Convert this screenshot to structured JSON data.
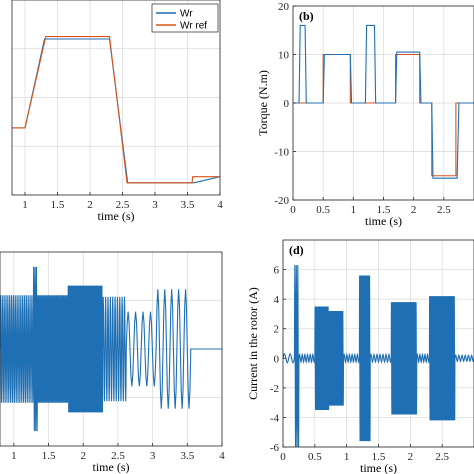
{
  "colors": {
    "series_a": "#1f6fb4",
    "series_b": "#d95319",
    "grid": "#d9d9d9",
    "axis": "#262626"
  },
  "chart_data": [
    {
      "id": "a",
      "type": "line",
      "panel_label": "",
      "xlabel": "time (s)",
      "ylabel": "",
      "xlim": [
        0.8,
        4.0
      ],
      "ylim": [
        -10,
        150
      ],
      "xticks": [
        1,
        1.5,
        2,
        2.5,
        3,
        3.5,
        4
      ],
      "xtick_labels": [
        "1",
        "1.5",
        "2",
        "2.5",
        "3",
        "3.5",
        "4"
      ],
      "yticks": [],
      "grid": true,
      "legend": {
        "placement": "top-right",
        "entries": [
          "Wr",
          "Wr ref"
        ]
      },
      "series": [
        {
          "name": "Wr",
          "color_key": "series_a",
          "x": [
            0.8,
            1.0,
            1.3,
            1.35,
            2.3,
            2.58,
            3.6,
            4.0
          ],
          "y": [
            45,
            45,
            118,
            118,
            118,
            0,
            0,
            5
          ]
        },
        {
          "name": "Wr ref",
          "color_key": "series_b",
          "x": [
            0.8,
            1.0,
            1.32,
            2.3,
            2.57,
            3.57,
            3.58,
            4.0
          ],
          "y": [
            45,
            45,
            120,
            120,
            0,
            0,
            5,
            5
          ]
        }
      ]
    },
    {
      "id": "b",
      "type": "line",
      "panel_label": "(b)",
      "xlabel": "time  (s)",
      "ylabel": "Torque (N.m)",
      "xlim": [
        0,
        3.0
      ],
      "ylim": [
        -20,
        20
      ],
      "xticks": [
        0,
        0.5,
        1,
        1.5,
        2,
        2.5
      ],
      "xtick_labels": [
        "0",
        "0.5",
        "1",
        "1.5",
        "2",
        "2.5"
      ],
      "yticks": [
        -20,
        -10,
        0,
        10,
        20
      ],
      "ytick_labels": [
        "-20",
        "-10",
        "0",
        "10",
        "20"
      ],
      "grid": true,
      "series": [
        {
          "name": "",
          "color_key": "series_b",
          "x": [
            0,
            0.5,
            0.5,
            0.95,
            0.95,
            1.7,
            1.7,
            2.1,
            2.1,
            2.3,
            2.3,
            2.7,
            2.7,
            3.0
          ],
          "y": [
            0,
            0,
            10,
            10,
            0,
            0,
            10,
            10,
            0,
            0,
            -15,
            -15,
            0,
            0
          ]
        },
        {
          "name": "",
          "color_key": "series_a",
          "x": [
            0,
            0.1,
            0.12,
            0.2,
            0.22,
            0.5,
            0.52,
            0.95,
            0.97,
            1.2,
            1.22,
            1.35,
            1.37,
            1.7,
            1.72,
            2.1,
            2.12,
            2.3,
            2.32,
            2.72,
            2.75,
            3.0
          ],
          "y": [
            0,
            0,
            16,
            16,
            0,
            0,
            10,
            10,
            0,
            0,
            16,
            16,
            0,
            0,
            10.5,
            10.5,
            0,
            0,
            -15.5,
            -15.5,
            0,
            0
          ]
        }
      ]
    },
    {
      "id": "c",
      "type": "line",
      "panel_label": "",
      "xlabel": "time  (s)",
      "ylabel": "",
      "xlim": [
        0.8,
        4.0
      ],
      "ylim": [
        -1.3,
        1.3
      ],
      "xticks": [
        1,
        1.5,
        2,
        2.5,
        3,
        3.5,
        4
      ],
      "xtick_labels": [
        "1",
        "1.5",
        "2",
        "2.5",
        "3",
        "3.5",
        "4"
      ],
      "yticks": [],
      "grid": true,
      "series": [
        {
          "name": "",
          "color_key": "series_a",
          "segments": [
            {
              "x0": 0.8,
              "x1": 1.28,
              "amp": 0.72,
              "cycles": 18
            },
            {
              "x0": 1.28,
              "x1": 1.34,
              "amp": 1.1,
              "cycles": 3
            },
            {
              "x0": 1.34,
              "x1": 1.78,
              "amp": 0.72,
              "cycles": 26
            },
            {
              "x0": 1.78,
              "x1": 2.28,
              "amp": 0.85,
              "cycles": 34
            },
            {
              "x0": 2.28,
              "x1": 2.62,
              "amp": 0.7,
              "cycles": 10
            },
            {
              "x0": 2.62,
              "x1": 3.05,
              "amp": 0.5,
              "cycles": 4
            },
            {
              "x0": 3.05,
              "x1": 3.55,
              "amp": 0.8,
              "cycles": 5
            },
            {
              "x0": 3.55,
              "x1": 4.0,
              "amp": 0.0,
              "cycles": 1
            }
          ]
        }
      ]
    },
    {
      "id": "d",
      "type": "line",
      "panel_label": "(d)",
      "xlabel": "time  (s)",
      "ylabel": "Current in the rotor (A)",
      "xlim": [
        0,
        3.0
      ],
      "ylim": [
        -6,
        8
      ],
      "xticks": [
        0,
        0.5,
        1,
        1.5,
        2,
        2.5
      ],
      "xtick_labels": [
        "0",
        "0.5",
        "1",
        "1.5",
        "2",
        "2.5"
      ],
      "yticks": [
        -6,
        -4,
        -2,
        0,
        2,
        4,
        6
      ],
      "ytick_labels": [
        "-6",
        "-4",
        "-2",
        "0",
        "2",
        "4",
        "6"
      ],
      "grid": true,
      "series": [
        {
          "name": "",
          "color_key": "series_a",
          "segments": [
            {
              "x0": 0,
              "x1": 0.18,
              "amp": 0.3,
              "cycles": 2
            },
            {
              "x0": 0.18,
              "x1": 0.25,
              "amp": 6.3,
              "cycles": 3
            },
            {
              "x0": 0.25,
              "x1": 0.5,
              "amp": 0.25,
              "cycles": 6
            },
            {
              "x0": 0.5,
              "x1": 0.72,
              "amp": 3.5,
              "cycles": 14
            },
            {
              "x0": 0.72,
              "x1": 0.95,
              "amp": 3.2,
              "cycles": 16
            },
            {
              "x0": 0.95,
              "x1": 1.2,
              "amp": 0.25,
              "cycles": 6
            },
            {
              "x0": 1.2,
              "x1": 1.37,
              "amp": 5.6,
              "cycles": 12
            },
            {
              "x0": 1.37,
              "x1": 1.7,
              "amp": 0.25,
              "cycles": 7
            },
            {
              "x0": 1.7,
              "x1": 2.1,
              "amp": 3.8,
              "cycles": 30
            },
            {
              "x0": 2.1,
              "x1": 2.3,
              "amp": 0.25,
              "cycles": 5
            },
            {
              "x0": 2.3,
              "x1": 2.7,
              "amp": 4.2,
              "cycles": 30
            },
            {
              "x0": 2.7,
              "x1": 3.0,
              "amp": 0.2,
              "cycles": 6
            }
          ]
        }
      ]
    }
  ]
}
